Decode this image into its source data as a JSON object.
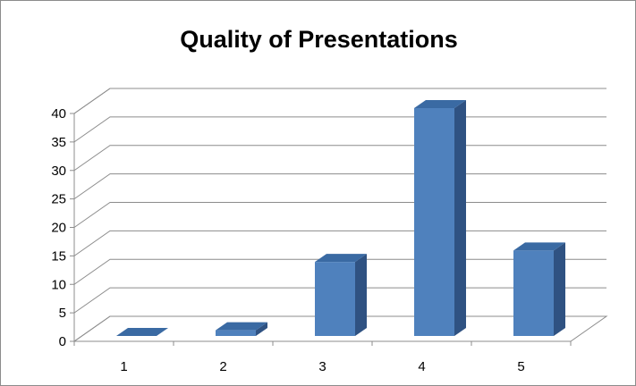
{
  "chart_data": {
    "type": "bar",
    "style": "3d-column",
    "title": "Quality of Presentations",
    "xlabel": "",
    "ylabel": "",
    "categories": [
      "1",
      "2",
      "3",
      "4",
      "5"
    ],
    "values": [
      0,
      1,
      13,
      40,
      15
    ],
    "ylim": [
      0,
      40
    ],
    "yticks": [
      "0",
      "5",
      "10",
      "15",
      "20",
      "25",
      "30",
      "35",
      "40"
    ],
    "grid": true,
    "legend": "none",
    "colors": {
      "bar_front": "#4f81bd",
      "bar_top": "#3a6aa3",
      "bar_side": "#2f5282",
      "grid": "#8c8c8c"
    }
  }
}
